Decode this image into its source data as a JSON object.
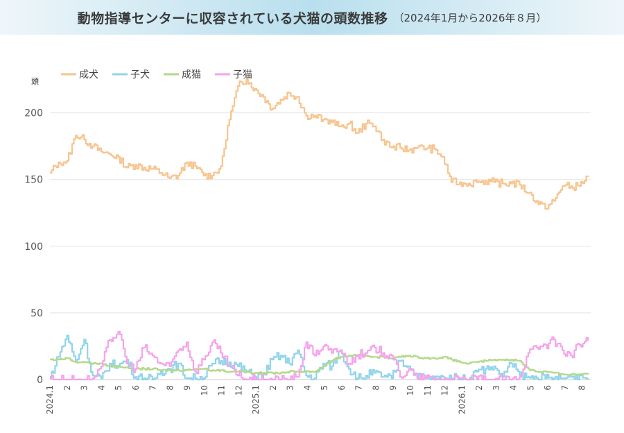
{
  "header": {
    "title": "動物指導センターに収容されている犬猫の頭数推移",
    "subtitle": "（2024年1月から2026年８月）"
  },
  "chart_data": {
    "type": "line",
    "title": "動物指導センターに収容されている犬猫の頭数推移",
    "subtitle": "（2024年1月から2026年８月）",
    "ylabel": "頭",
    "xlabel": "",
    "ylim": [
      0,
      230
    ],
    "yticks": [
      0,
      50,
      100,
      150,
      200
    ],
    "grid": "horizontal",
    "legend": "top-left",
    "x_start": "2024.1",
    "x_ticks": [
      "2024.1",
      "2",
      "3",
      "4",
      "5",
      "6",
      "7",
      "8",
      "9",
      "10",
      "11",
      "12",
      "2025.1",
      "2",
      "3",
      "4",
      "5",
      "6",
      "7",
      "8",
      "9",
      "10",
      "11",
      "12",
      "2026.1",
      "2",
      "3",
      "4",
      "5",
      "6",
      "7",
      "8"
    ],
    "series": [
      {
        "name": "成犬",
        "color": "#f7c48e",
        "values": [
          155,
          163,
          164,
          183,
          180,
          175,
          171,
          169,
          167,
          159,
          161,
          159,
          158,
          155,
          151,
          153,
          163,
          160,
          153,
          153,
          160,
          195,
          220,
          225,
          218,
          212,
          203,
          210,
          215,
          212,
          198,
          198,
          195,
          193,
          190,
          192,
          185,
          192,
          190,
          180,
          174,
          174,
          172,
          174,
          173,
          173,
          167,
          148,
          148,
          147,
          148,
          149,
          148,
          147,
          147,
          146,
          140,
          134,
          128,
          134,
          145,
          145,
          145,
          153
        ]
      },
      {
        "name": "子犬",
        "color": "#8fd4ec",
        "values": [
          2,
          17,
          33,
          13,
          30,
          3,
          1,
          12,
          10,
          15,
          2,
          1,
          0,
          6,
          8,
          12,
          1,
          1,
          1,
          12,
          14,
          13,
          10,
          6,
          2,
          4,
          15,
          18,
          12,
          22,
          3,
          1,
          12,
          10,
          22,
          8,
          1,
          3,
          5,
          2,
          1,
          14,
          10,
          2,
          1,
          0,
          2,
          1,
          1,
          0,
          6,
          8,
          10,
          2,
          12,
          3,
          2,
          1,
          1,
          1,
          1,
          2,
          3,
          1
        ]
      },
      {
        "name": "成猫",
        "color": "#b3d88a",
        "values": [
          15,
          15,
          16,
          13,
          13,
          12,
          12,
          10,
          10,
          9,
          8,
          8,
          8,
          7,
          7,
          7,
          7,
          8,
          8,
          7,
          7,
          6,
          6,
          6,
          5,
          5,
          5,
          5,
          6,
          6,
          6,
          6,
          10,
          14,
          17,
          18,
          18,
          18,
          17,
          17,
          16,
          17,
          18,
          17,
          16,
          16,
          17,
          15,
          13,
          12,
          13,
          14,
          15,
          15,
          15,
          14,
          8,
          6,
          6,
          5,
          4,
          4,
          4,
          5
        ]
      },
      {
        "name": "子猫",
        "color": "#f5a3ec",
        "values": [
          1,
          0,
          0,
          0,
          0,
          1,
          10,
          30,
          36,
          12,
          8,
          24,
          18,
          12,
          10,
          22,
          28,
          6,
          15,
          28,
          20,
          10,
          3,
          0,
          0,
          0,
          0,
          0,
          0,
          2,
          28,
          18,
          25,
          20,
          22,
          12,
          18,
          20,
          24,
          20,
          18,
          2,
          8,
          1,
          1,
          0,
          0,
          0,
          0,
          0,
          0,
          0,
          0,
          0,
          0,
          2,
          20,
          24,
          26,
          30,
          22,
          18,
          26,
          29
        ]
      }
    ]
  }
}
